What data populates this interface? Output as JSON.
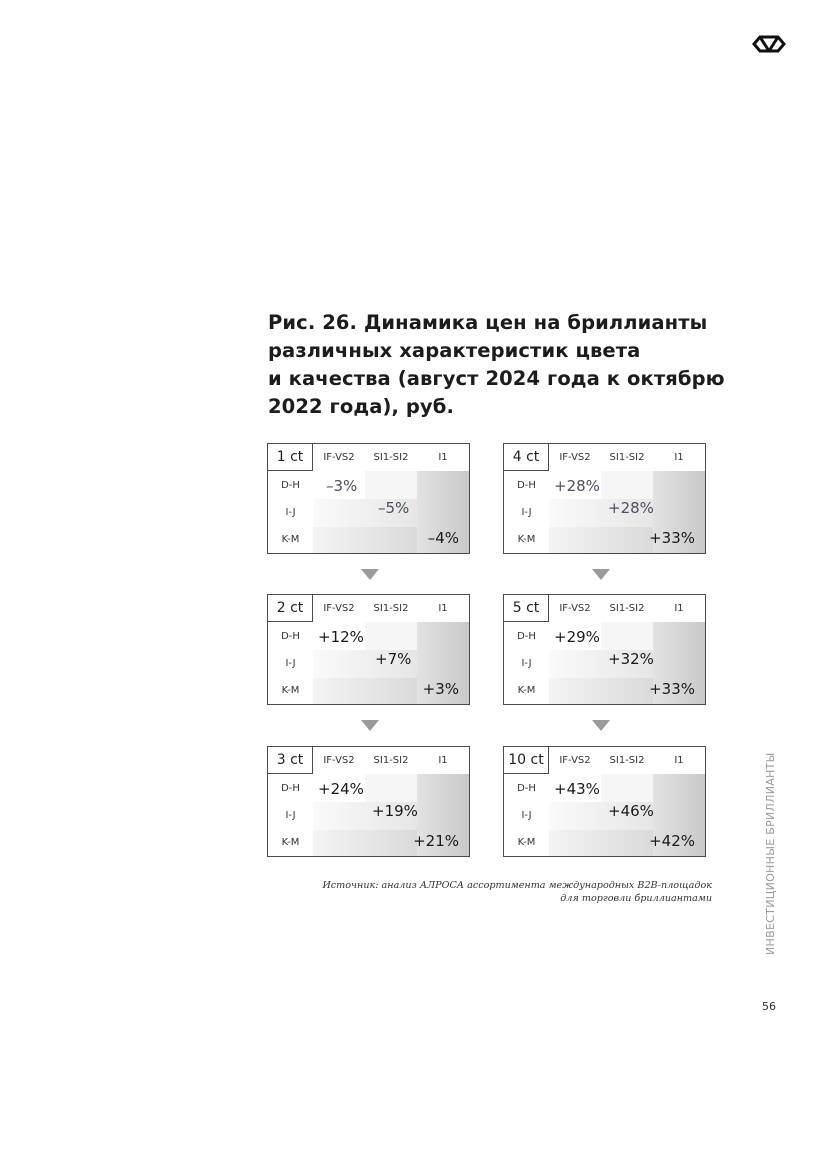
{
  "figure": {
    "title_lines": [
      "Рис. 26. Динамика цен на бриллианты",
      "различных характеристик цвета",
      "и качества (август 2024 года к октябрю",
      "2022 года), руб."
    ]
  },
  "table_headers": {
    "columns": [
      "IF-VS2",
      "SI1-SI2",
      "I1"
    ],
    "rows": [
      "D-H",
      "I-J",
      "K-M"
    ]
  },
  "grids": [
    {
      "carat": "1 ct",
      "values": [
        "–3%",
        "–5%",
        "–4%"
      ]
    },
    {
      "carat": "2 ct",
      "values": [
        "+12%",
        "+7%",
        "+3%"
      ]
    },
    {
      "carat": "3 ct",
      "values": [
        "+24%",
        "+19%",
        "+21%"
      ]
    },
    {
      "carat": "4 ct",
      "values": [
        "+28%",
        "+28%",
        "+33%"
      ]
    },
    {
      "carat": "5 ct",
      "values": [
        "+29%",
        "+32%",
        "+33%"
      ]
    },
    {
      "carat": "10 ct",
      "values": [
        "+43%",
        "+46%",
        "+42%"
      ]
    }
  ],
  "source_lines": [
    "Источник: анализ АЛРОСА ассортимента международных B2B-площадок",
    "для торговли бриллиантами"
  ],
  "side_label": "ИНВЕСТИЦИОННЫЕ БРИЛЛИАНТЫ",
  "page_number": "56",
  "colors": {
    "text": "#1c1c1c",
    "border": "#4a4a4a",
    "arrow": "#9a9a9a",
    "muted_value": "#4a5060"
  },
  "icons": {
    "logo": "brand-logo-icon",
    "arrow": "triangle-down-icon"
  }
}
